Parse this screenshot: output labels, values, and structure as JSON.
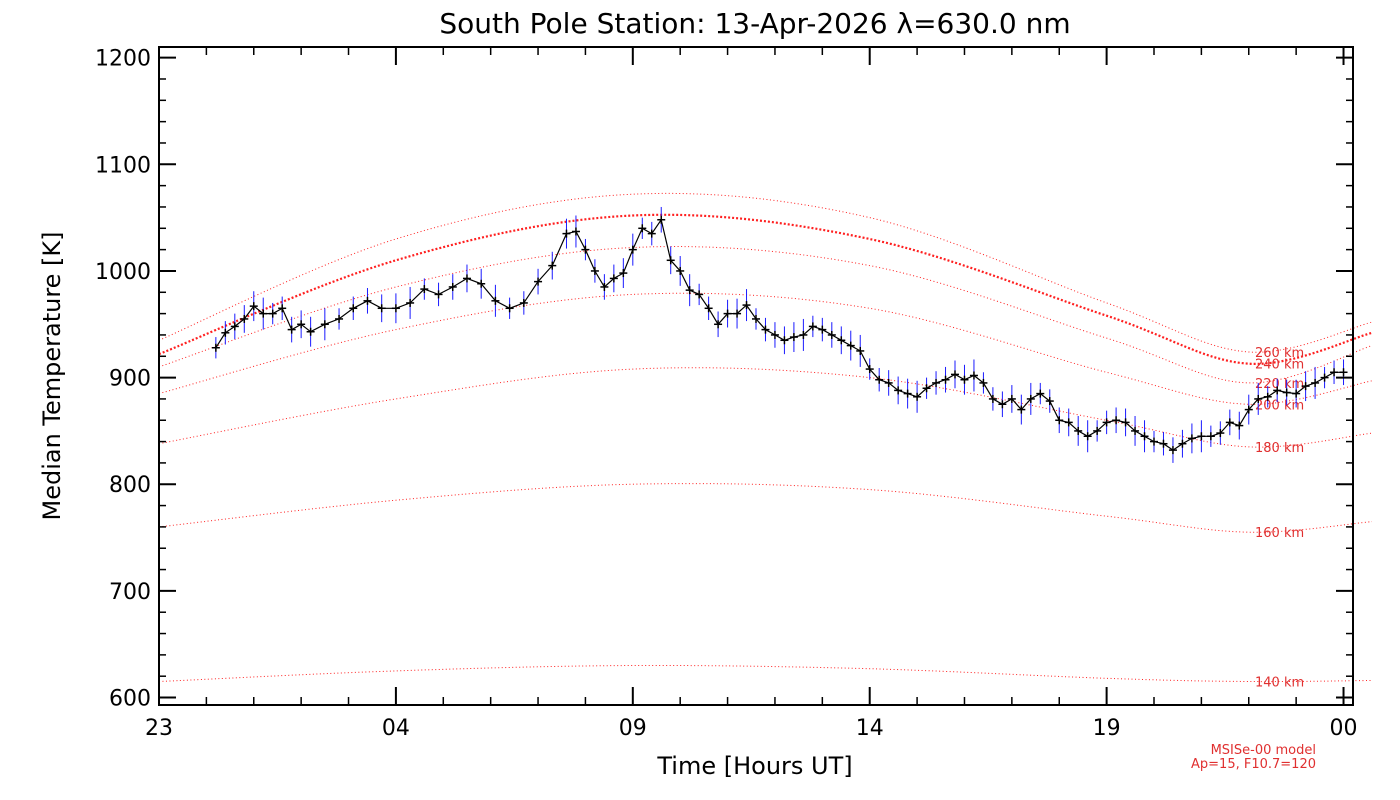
{
  "chart_data": {
    "type": "line",
    "title": "South Pole Station: 13-Apr-2026 λ=630.0 nm",
    "xlabel": "Time [Hours UT]",
    "ylabel": "Median Temperature [K]",
    "xlim": [
      23,
      48.2
    ],
    "ylim": [
      593,
      1210
    ],
    "x_ticks": [
      {
        "value": 23,
        "label": "23"
      },
      {
        "value": 28,
        "label": "04"
      },
      {
        "value": 33,
        "label": "09"
      },
      {
        "value": 38,
        "label": "14"
      },
      {
        "value": 43,
        "label": "19"
      },
      {
        "value": 48,
        "label": "00"
      }
    ],
    "y_ticks": [
      600,
      700,
      800,
      900,
      1000,
      1100,
      1200
    ],
    "grid": false,
    "model_note": [
      "MSISe-00 model",
      "Ap=15, F10.7=120"
    ],
    "colors": {
      "data_line": "#000000",
      "error_bars": "#1a1aff",
      "model_curves": "#ff2020",
      "model_labels": "#e03030",
      "axes": "#000000"
    },
    "model_curves": [
      {
        "label": "140 km",
        "x": [
          23,
          28,
          33,
          38,
          43,
          46,
          48.6
        ],
        "y": [
          615,
          625,
          630,
          627,
          618,
          615,
          616
        ]
      },
      {
        "label": "160 km",
        "x": [
          23,
          28,
          33,
          38,
          43,
          46,
          48.6
        ],
        "y": [
          760,
          785,
          800,
          795,
          770,
          755,
          765
        ]
      },
      {
        "label": "180 km",
        "x": [
          23,
          28,
          33,
          38,
          43,
          46,
          48.6
        ],
        "y": [
          838,
          880,
          908,
          900,
          860,
          835,
          848
        ]
      },
      {
        "label": "200 km",
        "x": [
          23,
          28,
          33,
          38,
          43,
          46,
          48.6
        ],
        "y": [
          885,
          945,
          978,
          965,
          905,
          875,
          897
        ]
      },
      {
        "label": "220 km",
        "x": [
          23,
          28,
          33,
          38,
          43,
          46,
          48.6
        ],
        "y": [
          910,
          985,
          1022,
          1005,
          937,
          895,
          930
        ]
      },
      {
        "label": "240 km",
        "x": [
          23,
          28,
          33,
          38,
          43,
          46,
          48.6
        ],
        "y": [
          922,
          1010,
          1052,
          1030,
          958,
          913,
          942
        ]
      },
      {
        "label": "260 km",
        "x": [
          23,
          28,
          33,
          38,
          43,
          46,
          48.6
        ],
        "y": [
          935,
          1030,
          1072,
          1050,
          970,
          924,
          952
        ]
      }
    ],
    "series": [
      {
        "x": [
          24.2,
          24.4,
          24.6,
          24.8,
          25.0,
          25.2,
          25.4,
          25.6,
          25.8,
          26.0,
          26.2,
          26.5,
          26.8,
          27.1,
          27.4,
          27.7,
          28.0,
          28.3,
          28.6,
          28.9,
          29.2,
          29.5,
          29.8,
          30.1,
          30.4,
          30.7,
          31.0,
          31.3,
          31.6,
          31.8,
          32.0,
          32.2,
          32.4,
          32.6,
          32.8,
          33.0,
          33.2,
          33.4,
          33.6,
          33.8,
          34.0,
          34.2,
          34.4,
          34.6,
          34.8,
          35.0,
          35.2,
          35.4,
          35.6,
          35.8,
          36.0,
          36.2,
          36.4,
          36.6,
          36.8,
          37.0,
          37.2,
          37.4,
          37.6,
          37.8,
          38.0,
          38.2,
          38.4,
          38.6,
          38.8,
          39.0,
          39.2,
          39.4,
          39.6,
          39.8,
          40.0,
          40.2,
          40.4,
          40.6,
          40.8,
          41.0,
          41.2,
          41.4,
          41.6,
          41.8,
          42.0,
          42.2,
          42.4,
          42.6,
          42.8,
          43.0,
          43.2,
          43.4,
          43.6,
          43.8,
          44.0,
          44.2,
          44.4,
          44.6,
          44.8,
          45.0,
          45.2,
          45.4,
          45.6,
          45.8,
          46.0,
          46.2,
          46.4,
          46.6,
          46.8,
          47.0,
          47.2,
          47.4,
          47.6,
          47.8,
          48.0
        ],
        "y": [
          928,
          942,
          948,
          955,
          967,
          960,
          960,
          965,
          945,
          950,
          943,
          950,
          955,
          965,
          972,
          965,
          965,
          970,
          983,
          978,
          985,
          993,
          988,
          972,
          965,
          970,
          990,
          1005,
          1035,
          1037,
          1020,
          1000,
          985,
          993,
          998,
          1020,
          1040,
          1035,
          1048,
          1010,
          1000,
          982,
          978,
          965,
          950,
          960,
          960,
          968,
          955,
          945,
          940,
          935,
          938,
          940,
          948,
          945,
          940,
          935,
          930,
          925,
          908,
          898,
          895,
          888,
          885,
          882,
          890,
          895,
          898,
          903,
          898,
          902,
          895,
          880,
          875,
          880,
          870,
          880,
          885,
          878,
          860,
          858,
          850,
          845,
          850,
          858,
          860,
          858,
          850,
          845,
          840,
          838,
          832,
          838,
          843,
          845,
          845,
          848,
          858,
          855,
          870,
          880,
          882,
          888,
          886,
          885,
          892,
          895,
          900,
          905,
          905
        ]
      }
    ]
  }
}
